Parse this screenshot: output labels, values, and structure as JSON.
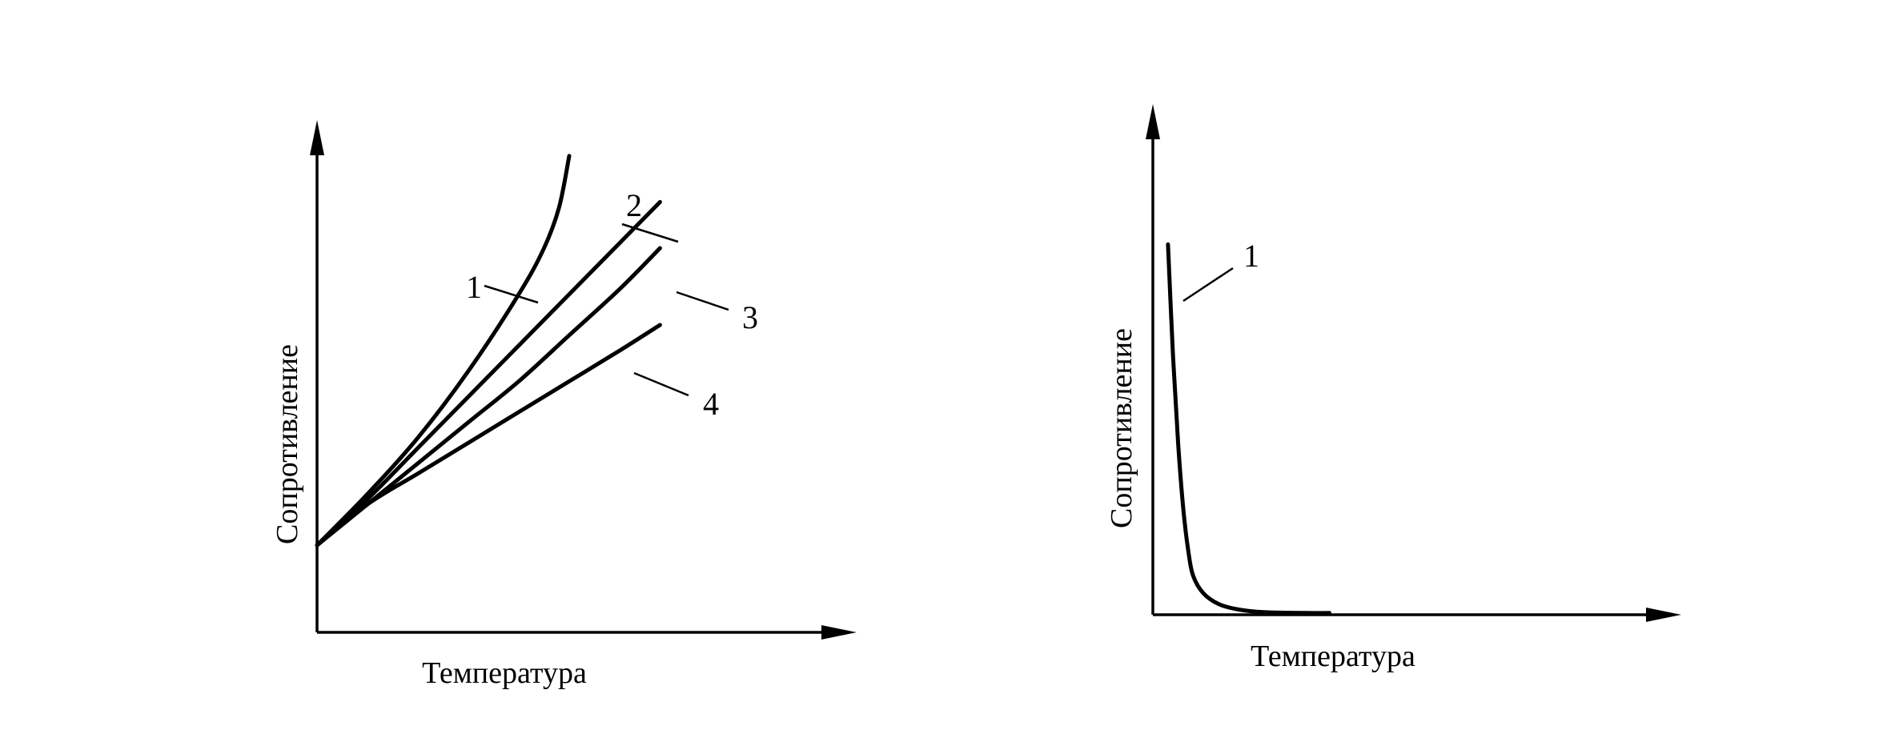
{
  "chart_data": [
    {
      "type": "line",
      "title": "",
      "xlabel": "Температура",
      "ylabel": "Сопротивление",
      "xlim": [
        0,
        100
      ],
      "ylim": [
        0,
        100
      ],
      "grid": false,
      "legend": "none",
      "series": [
        {
          "name": "1",
          "x": [
            0,
            10,
            20,
            30,
            40,
            45,
            48,
            50
          ],
          "y": [
            17,
            27,
            38,
            51,
            66,
            75,
            83,
            93
          ]
        },
        {
          "name": "2",
          "x": [
            0,
            10,
            20,
            30,
            40,
            50,
            60,
            68
          ],
          "y": [
            17,
            26,
            36,
            46,
            56,
            66,
            76,
            84
          ]
        },
        {
          "name": "3",
          "x": [
            0,
            10,
            20,
            30,
            40,
            50,
            60,
            68
          ],
          "y": [
            17,
            25,
            33,
            41,
            49,
            58,
            67,
            75
          ]
        },
        {
          "name": "4",
          "x": [
            0,
            10,
            20,
            30,
            40,
            50,
            60,
            68
          ],
          "y": [
            17,
            25,
            31,
            37,
            43,
            49,
            55,
            60
          ]
        }
      ]
    },
    {
      "type": "line",
      "title": "",
      "xlabel": "Температура",
      "ylabel": "Сопротивление",
      "xlim": [
        0,
        100
      ],
      "ylim": [
        0,
        100
      ],
      "grid": false,
      "legend": "none",
      "series": [
        {
          "name": "1",
          "x": [
            3,
            4,
            5,
            6,
            7,
            8,
            10,
            13,
            17,
            22,
            30,
            35
          ],
          "y": [
            86,
            60,
            40,
            25,
            15,
            9,
            5,
            2.5,
            1.2,
            0.6,
            0.4,
            0.4
          ]
        }
      ]
    }
  ]
}
